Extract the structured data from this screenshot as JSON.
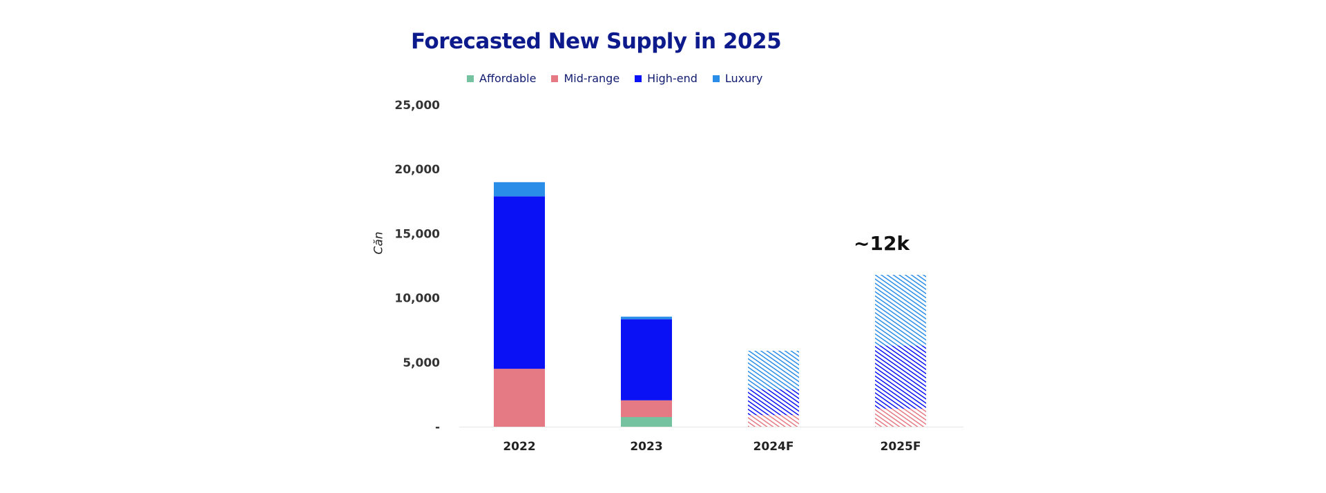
{
  "chart_data": {
    "type": "bar",
    "stacked": true,
    "title": "Forecasted New Supply in 2025",
    "xlabel": "",
    "ylabel": "Căn",
    "ylim": [
      0,
      25000
    ],
    "y_ticks": [
      {
        "value": 0,
        "label": "-"
      },
      {
        "value": 5000,
        "label": "5,000"
      },
      {
        "value": 10000,
        "label": "10,000"
      },
      {
        "value": 15000,
        "label": "15,000"
      },
      {
        "value": 20000,
        "label": "20,000"
      },
      {
        "value": 25000,
        "label": "25,000"
      }
    ],
    "categories": [
      "2022",
      "2023",
      "2024F",
      "2025F"
    ],
    "forecast": [
      false,
      false,
      true,
      true
    ],
    "series": [
      {
        "name": "Affordable",
        "color": "#74c2a0",
        "values": [
          0,
          750,
          0,
          0
        ]
      },
      {
        "name": "Mid-range",
        "color": "#e57a84",
        "values": [
          4500,
          1300,
          900,
          1400
        ]
      },
      {
        "name": "High-end",
        "color": "#0a12f5",
        "values": [
          13400,
          6300,
          2000,
          4900
        ]
      },
      {
        "name": "Luxury",
        "color": "#2a8de8",
        "values": [
          1100,
          200,
          3000,
          5500
        ]
      }
    ],
    "annotation": {
      "text": "~12k",
      "category": "2025F"
    },
    "legend_position": "top",
    "grid": false
  }
}
